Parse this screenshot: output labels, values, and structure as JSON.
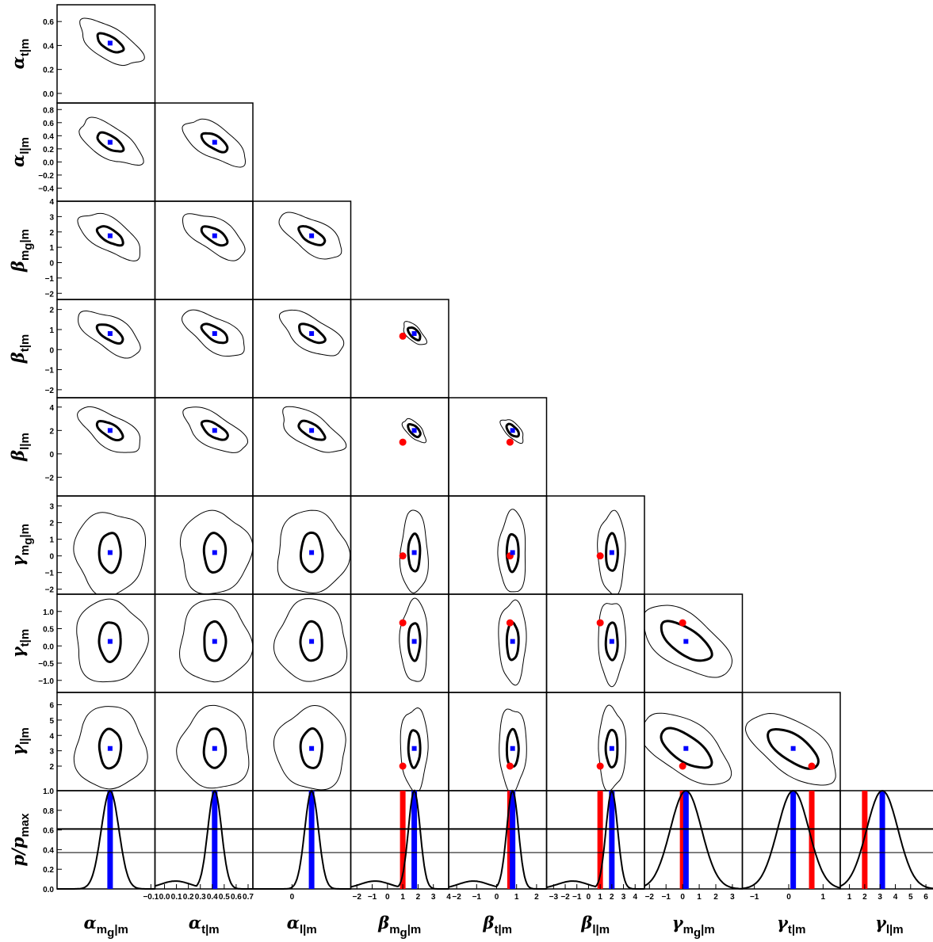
{
  "chart_data": {
    "type": "corner-plot",
    "description_free": true,
    "parameters": [
      {
        "key": "a_mg",
        "symbol": "α",
        "subscript": "m",
        "subsub": "g",
        "suffix": "|m",
        "range": [
          -2.4,
          0.0
        ],
        "ticks": [
          -0.1
        ],
        "tick_labels": [
          "−0.1"
        ]
      },
      {
        "key": "a_t",
        "symbol": "α",
        "subscript": "t",
        "subsub": "",
        "suffix": "|m",
        "range": [
          -0.08,
          0.74
        ],
        "ticks": [
          0.0,
          0.1,
          0.2,
          0.3,
          0.4,
          0.5,
          0.6,
          0.7
        ],
        "tick_labels": [
          "0.0",
          "0.1",
          "0.2",
          "0.3",
          "0.4",
          "0.5",
          "0.6",
          "0.7"
        ]
      },
      {
        "key": "a_l",
        "symbol": "α",
        "subscript": "l",
        "subsub": "",
        "suffix": "|m",
        "range": [
          -0.6,
          0.9
        ],
        "ticks": [
          0.0
        ],
        "tick_labels": [
          "0"
        ]
      },
      {
        "key": "b_mg",
        "symbol": "β",
        "subscript": "m",
        "subsub": "g",
        "suffix": "|m",
        "range": [
          -2.4,
          4.0
        ],
        "ticks": [
          -2,
          -1,
          0,
          1,
          2,
          3,
          4
        ],
        "tick_labels": [
          "−2",
          "−1",
          "0",
          "1",
          "2",
          "3",
          "4"
        ]
      },
      {
        "key": "b_t",
        "symbol": "β",
        "subscript": "t",
        "subsub": "",
        "suffix": "|m",
        "range": [
          -2.4,
          2.5
        ],
        "ticks": [
          -2,
          -1,
          0,
          1,
          2
        ],
        "tick_labels": [
          "−2",
          "−1",
          "0",
          "1",
          "2"
        ]
      },
      {
        "key": "b_l",
        "symbol": "β",
        "subscript": "l",
        "subsub": "",
        "suffix": "|m",
        "range": [
          -3.6,
          4.8
        ],
        "ticks": [
          -3,
          -2,
          -1,
          0,
          1,
          2,
          3,
          4
        ],
        "tick_labels": [
          "−3",
          "−2",
          "−1",
          "0",
          "1",
          "2",
          "3",
          "4"
        ]
      },
      {
        "key": "g_mg",
        "symbol": "γ",
        "subscript": "m",
        "subsub": "g",
        "suffix": "|m",
        "range": [
          -2.3,
          3.6
        ],
        "ticks": [
          -2,
          -1,
          0,
          1,
          2,
          3
        ],
        "tick_labels": [
          "−2",
          "−1",
          "0",
          "1",
          "2",
          "3"
        ]
      },
      {
        "key": "g_t",
        "symbol": "γ",
        "subscript": "t",
        "subsub": "",
        "suffix": "|m",
        "range": [
          -1.35,
          1.5
        ],
        "ticks": [
          -1,
          0,
          1
        ],
        "tick_labels": [
          "−1",
          "0",
          "1"
        ]
      },
      {
        "key": "g_l",
        "symbol": "γ",
        "subscript": "l",
        "subsub": "",
        "suffix": "|m",
        "range": [
          0.4,
          6.8
        ],
        "ticks": [
          1,
          2,
          3,
          4,
          5,
          6
        ],
        "tick_labels": [
          "1",
          "2",
          "3",
          "4",
          "5",
          "6"
        ]
      }
    ],
    "row_axes": [
      {
        "param": "a_t",
        "ticks": [
          0.0,
          0.2,
          0.4,
          0.6
        ],
        "tick_labels": [
          "0.0",
          "0.2",
          "0.4",
          "0.6"
        ]
      },
      {
        "param": "a_l",
        "ticks": [
          -0.4,
          -0.2,
          0.0,
          0.2,
          0.4,
          0.6,
          0.8
        ],
        "tick_labels": [
          "−0.4",
          "−0.2",
          "0.0",
          "0.2",
          "0.4",
          "0.6",
          "0.8"
        ]
      },
      {
        "param": "b_mg",
        "ticks": [
          -2,
          -1,
          0,
          1,
          2,
          3,
          4
        ],
        "tick_labels": [
          "−2",
          "−1",
          "0",
          "1",
          "2",
          "3",
          "4"
        ]
      },
      {
        "param": "b_t",
        "ticks": [
          -2,
          -1,
          0,
          1,
          2
        ],
        "tick_labels": [
          "−2",
          "−1",
          "0",
          "1",
          "2"
        ]
      },
      {
        "param": "b_l",
        "ticks": [
          -2,
          0,
          2,
          4
        ],
        "tick_labels": [
          "−2",
          "0",
          "2",
          "4"
        ]
      },
      {
        "param": "g_mg",
        "ticks": [
          -2,
          -1,
          0,
          1,
          2,
          3
        ],
        "tick_labels": [
          "−2",
          "−1",
          "0",
          "1",
          "2",
          "3"
        ]
      },
      {
        "param": "g_t",
        "ticks": [
          -1.0,
          -0.5,
          0.0,
          0.5,
          1.0
        ],
        "tick_labels": [
          "−1.0",
          "−0.5",
          "0.0",
          "0.5",
          "1.0"
        ]
      },
      {
        "param": "g_l",
        "ticks": [
          2,
          3,
          4,
          5,
          6
        ],
        "tick_labels": [
          "2",
          "3",
          "4",
          "5",
          "6"
        ]
      }
    ],
    "best_fit": {
      "a_mg": -1.1,
      "a_t": 0.42,
      "a_l": 0.3,
      "b_mg": 1.75,
      "b_t": 0.8,
      "b_l": 2.0,
      "g_mg": 0.2,
      "g_t": 0.13,
      "g_l": 3.15
    },
    "reference": {
      "b_mg": 1.0,
      "b_t": 0.67,
      "b_l": 1.0,
      "g_mg": 0.0,
      "g_t": 0.67,
      "g_l": 2.0
    },
    "marginal_y": {
      "label": "p/p",
      "sub": "max",
      "range": [
        0,
        1
      ],
      "ticks": [
        0.0,
        0.2,
        0.4,
        0.6,
        0.8,
        1.0
      ],
      "tick_labels": [
        "0.0",
        "0.2",
        "0.4",
        "0.6",
        "0.8",
        "1.0"
      ],
      "levels": [
        0.61,
        0.37
      ]
    },
    "colors": {
      "best_fit": "#0000ff",
      "reference": "#ff0000",
      "contour": "#000000"
    }
  }
}
